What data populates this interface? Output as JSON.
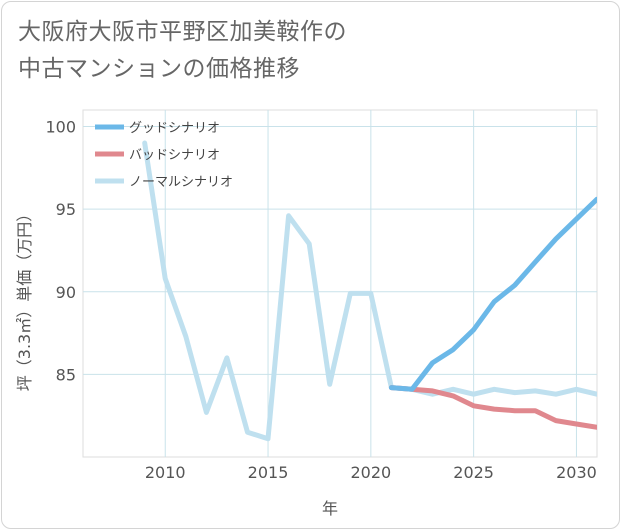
{
  "title_lines": [
    "大阪府大阪市平野区加美鞍作の",
    "中古マンションの価格推移"
  ],
  "chart_data": {
    "type": "line",
    "xlabel": "年",
    "ylabel": "坪（3.3㎡）単価（万円）",
    "xlim": [
      2006,
      2031
    ],
    "ylim": [
      80,
      101
    ],
    "xticks": [
      2010,
      2015,
      2020,
      2025,
      2030
    ],
    "yticks": [
      85,
      90,
      95,
      100
    ],
    "grid": true,
    "legend_position": "top-left",
    "series": [
      {
        "name": "グッドシナリオ",
        "color": "#6bb8e8",
        "x": [
          2021,
          2022,
          2023,
          2024,
          2025,
          2026,
          2027,
          2028,
          2029,
          2030,
          2031
        ],
        "y": [
          84.2,
          84.1,
          85.7,
          86.5,
          87.7,
          89.4,
          90.4,
          91.8,
          93.2,
          94.4,
          95.6
        ]
      },
      {
        "name": "バッドシナリオ",
        "color": "#e0888e",
        "x": [
          2021,
          2022,
          2023,
          2024,
          2025,
          2026,
          2027,
          2028,
          2029,
          2030,
          2031
        ],
        "y": [
          84.2,
          84.1,
          84.0,
          83.7,
          83.1,
          82.9,
          82.8,
          82.8,
          82.2,
          82.0,
          81.8
        ]
      },
      {
        "name": "ノーマルシナリオ",
        "color": "#bfe0ef",
        "x": [
          2009,
          2010,
          2011,
          2012,
          2013,
          2014,
          2015,
          2016,
          2017,
          2018,
          2019,
          2020,
          2021,
          2022,
          2023,
          2024,
          2025,
          2026,
          2027,
          2028,
          2029,
          2030,
          2031
        ],
        "y": [
          99.0,
          90.8,
          87.3,
          82.7,
          86.0,
          81.5,
          81.1,
          94.6,
          92.9,
          84.4,
          89.9,
          89.9,
          84.2,
          84.1,
          83.8,
          84.1,
          83.8,
          84.1,
          83.9,
          84.0,
          83.8,
          84.1,
          83.8
        ]
      }
    ]
  }
}
